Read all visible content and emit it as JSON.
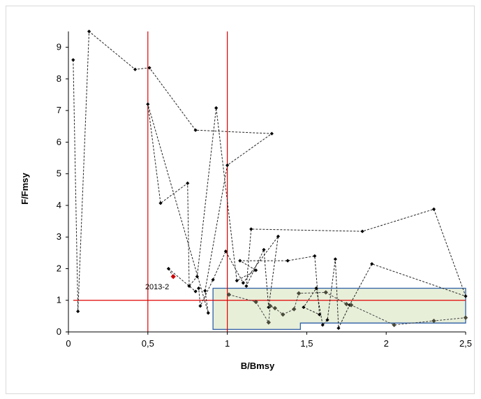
{
  "chart_data": {
    "type": "scatter",
    "xlabel": "B/Bmsy",
    "ylabel": "F/Fmsy",
    "xlim": [
      0,
      2.5
    ],
    "ylim": [
      0,
      9.5
    ],
    "x_ticks": [
      "0",
      "0,5",
      "1",
      "1,5",
      "2",
      "2,5"
    ],
    "y_ticks": [
      "0",
      "1",
      "2",
      "3",
      "4",
      "5",
      "6",
      "7",
      "8",
      "9"
    ],
    "grid": false,
    "reference_lines": {
      "vertical": [
        0.5,
        1.0
      ],
      "horizontal": [
        1.0
      ],
      "color": "#e00000"
    },
    "target_region": {
      "outline": [
        [
          0.91,
          0.08
        ],
        [
          0.91,
          1.38
        ],
        [
          2.5,
          1.38
        ],
        [
          2.5,
          0.28
        ],
        [
          1.46,
          0.28
        ],
        [
          1.46,
          0.08
        ]
      ],
      "fill": "#e8efd9",
      "stroke": "#2e5fa6"
    },
    "trajectory": {
      "marker_color": "#000000",
      "line_style": "dashed",
      "points": [
        [
          0.03,
          8.6
        ],
        [
          0.06,
          0.65
        ],
        [
          0.13,
          9.5
        ],
        [
          0.42,
          8.3
        ],
        [
          0.51,
          8.35
        ],
        [
          0.8,
          6.38
        ],
        [
          1.28,
          6.27
        ],
        [
          1.0,
          5.27
        ],
        [
          0.86,
          1.3
        ],
        [
          0.88,
          0.6
        ],
        [
          0.5,
          7.2
        ],
        [
          0.58,
          4.07
        ],
        [
          0.75,
          4.7
        ],
        [
          0.76,
          1.45
        ],
        [
          0.81,
          1.75
        ],
        [
          0.93,
          7.08
        ],
        [
          1.06,
          1.62
        ],
        [
          1.18,
          1.95
        ],
        [
          1.08,
          2.25
        ],
        [
          1.38,
          2.25
        ],
        [
          1.55,
          2.4
        ],
        [
          1.58,
          0.55
        ],
        [
          1.48,
          0.78
        ],
        [
          1.56,
          1.38
        ],
        [
          1.6,
          0.22
        ],
        [
          1.63,
          0.38
        ],
        [
          1.68,
          2.3
        ],
        [
          1.7,
          0.12
        ],
        [
          1.77,
          0.85
        ],
        [
          1.91,
          2.15
        ],
        [
          2.5,
          1.13
        ],
        [
          2.3,
          3.88
        ],
        [
          1.85,
          3.18
        ],
        [
          1.15,
          3.25
        ],
        [
          1.12,
          1.45
        ],
        [
          1.23,
          2.6
        ],
        [
          1.26,
          0.78
        ],
        [
          1.32,
          3.02
        ],
        [
          1.1,
          1.55
        ],
        [
          0.99,
          2.55
        ],
        [
          0.91,
          1.65
        ],
        [
          0.83,
          0.82
        ],
        [
          0.82,
          1.38
        ],
        [
          0.8,
          1.28
        ],
        [
          0.63,
          2.0
        ]
      ],
      "target_points": [
        [
          1.01,
          1.18
        ],
        [
          1.18,
          0.95
        ],
        [
          1.26,
          0.3
        ],
        [
          1.27,
          0.82
        ],
        [
          1.3,
          0.75
        ],
        [
          1.35,
          0.55
        ],
        [
          1.42,
          0.72
        ],
        [
          1.45,
          1.22
        ],
        [
          1.62,
          1.25
        ],
        [
          1.75,
          0.88
        ],
        [
          1.78,
          0.85
        ],
        [
          2.05,
          0.22
        ],
        [
          2.3,
          0.35
        ],
        [
          2.5,
          0.45
        ]
      ]
    },
    "latest_point": {
      "x": 0.66,
      "y": 1.75,
      "color": "#cc0000",
      "label": "2013-2"
    }
  }
}
